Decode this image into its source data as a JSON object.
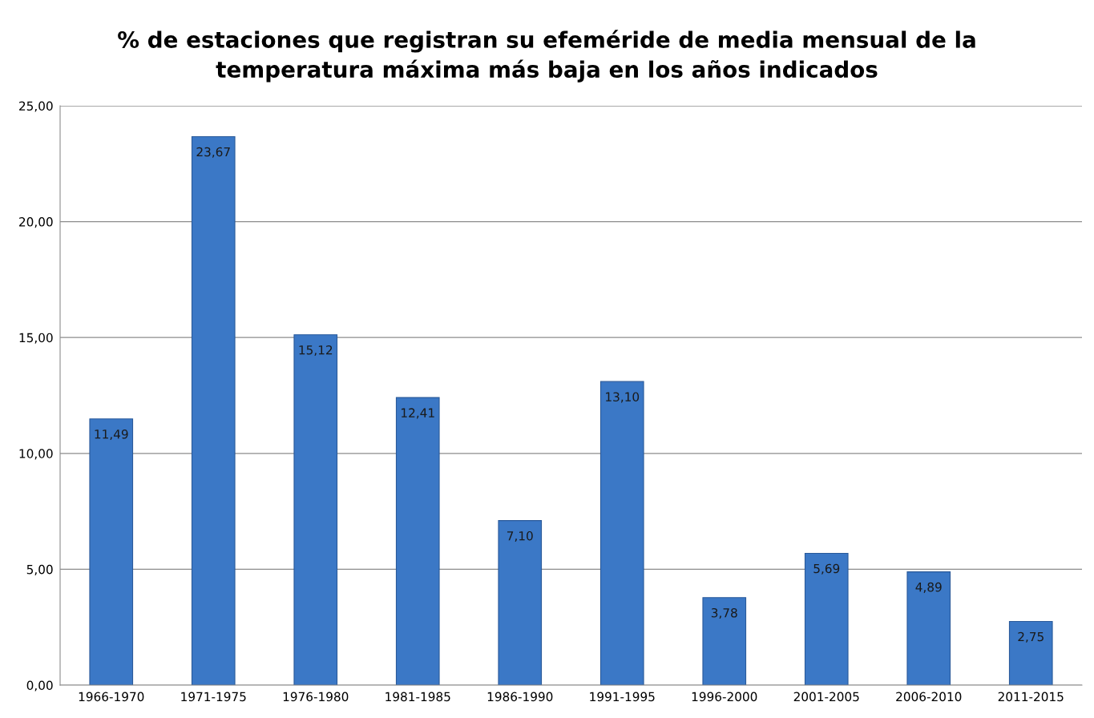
{
  "chart_data": {
    "type": "bar",
    "title": "% de estaciones que registran su efeméride de media mensual de la\ntemperatura máxima más baja en los años indicados",
    "categories": [
      "1966-1970",
      "1971-1975",
      "1976-1980",
      "1981-1985",
      "1986-1990",
      "1991-1995",
      "1996-2000",
      "2001-2005",
      "2006-2010",
      "2011-2015"
    ],
    "values": [
      11.49,
      23.67,
      15.12,
      12.41,
      7.1,
      13.1,
      3.78,
      5.69,
      4.89,
      2.75
    ],
    "value_labels": [
      "11,49",
      "23,67",
      "15,12",
      "12,41",
      "7,10",
      "13,10",
      "3,78",
      "5,69",
      "4,89",
      "2,75"
    ],
    "color": "#3b78c6",
    "ylim": [
      0,
      25
    ],
    "yticks": [
      {
        "value": 0,
        "label": "0,00"
      },
      {
        "value": 5,
        "label": "5,00"
      },
      {
        "value": 10,
        "label": "10,00"
      },
      {
        "value": 15,
        "label": "15,00"
      },
      {
        "value": 20,
        "label": "20,00"
      },
      {
        "value": 25,
        "label": "25,00"
      }
    ],
    "grid": "y",
    "legend": false
  }
}
